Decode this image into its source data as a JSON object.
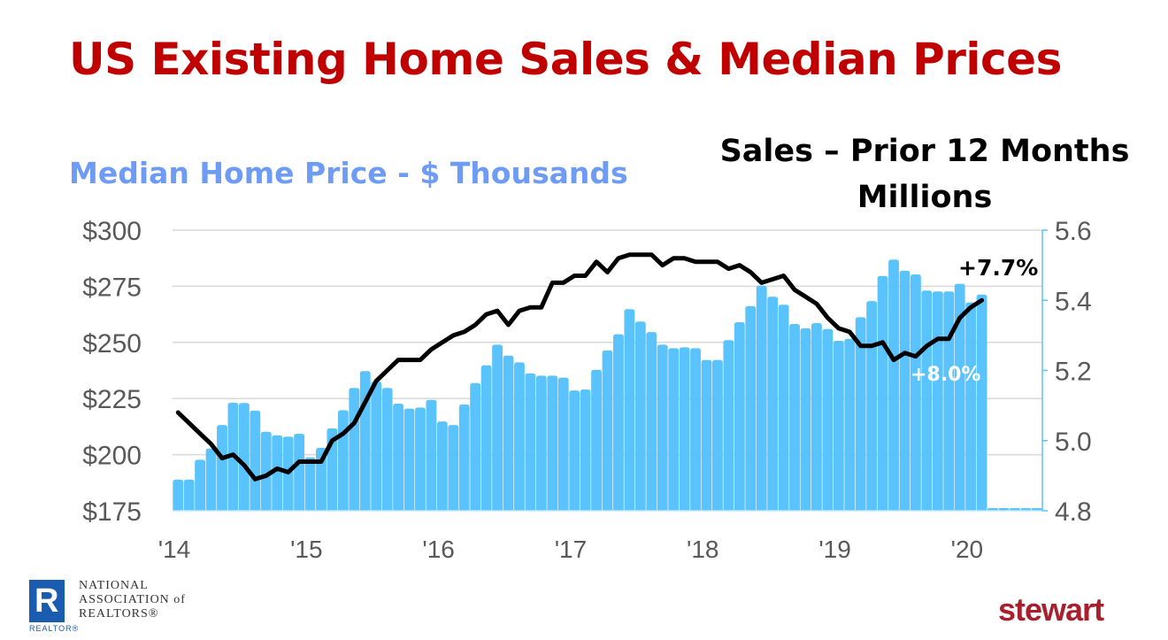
{
  "title": "US Existing Home Sales & Median Prices",
  "left_heading": "Median Home Price - $ Thousands",
  "right_heading": [
    "Sales – Prior 12 Months",
    "Millions"
  ],
  "chart_data": {
    "type": "bar+line",
    "x_tick_labels": [
      "'14",
      "'15",
      "'16",
      "'17",
      "'18",
      "'19",
      "'20"
    ],
    "x_start": "2014-01",
    "x_frequency": "monthly",
    "left_axis": {
      "label": "Median Home Price - $ Thousands",
      "ticks": [
        "$175",
        "$200",
        "$225",
        "$250",
        "$275",
        "$300"
      ],
      "ylim": [
        175,
        300
      ]
    },
    "right_axis": {
      "label": "Sales – Prior 12 Months Millions",
      "ticks": [
        "4.8",
        "5.0",
        "5.2",
        "5.4",
        "5.6"
      ],
      "ylim": [
        4.8,
        5.6
      ]
    },
    "grid": true,
    "colors": {
      "bars": "#5BC3FC",
      "line": "#000000",
      "title": "#C00000",
      "left_heading": "#6E9CF5"
    },
    "series": [
      {
        "type": "bar",
        "axis": "left",
        "values": [
          188.9,
          188.9,
          197.7,
          202.7,
          213.2,
          223.1,
          223.0,
          219.6,
          210.2,
          208.6,
          208.0,
          209.3,
          198.8,
          203.0,
          211.7,
          219.8,
          229.7,
          237.2,
          232.6,
          229.7,
          222.7,
          220.5,
          221.0,
          224.4,
          214.8,
          213.2,
          222.3,
          231.9,
          239.8,
          249.0,
          244.1,
          241.1,
          236.2,
          235.2,
          235.2,
          234.3,
          228.6,
          229.0,
          237.8,
          246.4,
          253.6,
          264.8,
          259.3,
          254.6,
          249.0,
          247.4,
          247.8,
          247.4,
          242.2,
          242.2,
          251.0,
          259.0,
          266.2,
          275.3,
          270.4,
          266.8,
          258.2,
          256.3,
          258.6,
          256.0,
          250.7,
          251.6,
          261.2,
          268.4,
          279.6,
          286.9,
          281.9,
          280.3,
          273.1,
          272.7,
          272.7,
          276.1,
          267.8,
          271.3,
          null,
          null,
          null,
          null,
          null
        ]
      },
      {
        "type": "line",
        "axis": "right",
        "values": [
          5.08,
          5.05,
          5.02,
          4.99,
          4.95,
          4.96,
          4.93,
          4.89,
          4.9,
          4.92,
          4.91,
          4.94,
          4.94,
          4.94,
          5.0,
          5.02,
          5.05,
          5.11,
          5.17,
          5.2,
          5.23,
          5.23,
          5.23,
          5.26,
          5.28,
          5.3,
          5.31,
          5.33,
          5.36,
          5.37,
          5.33,
          5.37,
          5.38,
          5.38,
          5.45,
          5.45,
          5.47,
          5.47,
          5.51,
          5.48,
          5.52,
          5.53,
          5.53,
          5.53,
          5.5,
          5.52,
          5.52,
          5.51,
          5.51,
          5.51,
          5.49,
          5.5,
          5.48,
          5.45,
          5.46,
          5.47,
          5.43,
          5.41,
          5.39,
          5.35,
          5.32,
          5.31,
          5.27,
          5.27,
          5.28,
          5.23,
          5.25,
          5.24,
          5.27,
          5.29,
          5.29,
          5.35,
          5.38,
          5.4
        ]
      }
    ],
    "annotations": [
      {
        "text": "+7.7%",
        "color": "#000000",
        "refers_to": "line"
      },
      {
        "text": "+8.0%",
        "color": "#FFFFFF",
        "refers_to": "bars"
      }
    ]
  },
  "logos": {
    "nar": {
      "letter": "R",
      "small": "REALTOR®",
      "text": "NATIONAL\nASSOCIATION of\nREALTORS®"
    },
    "stewart": "stewart"
  }
}
